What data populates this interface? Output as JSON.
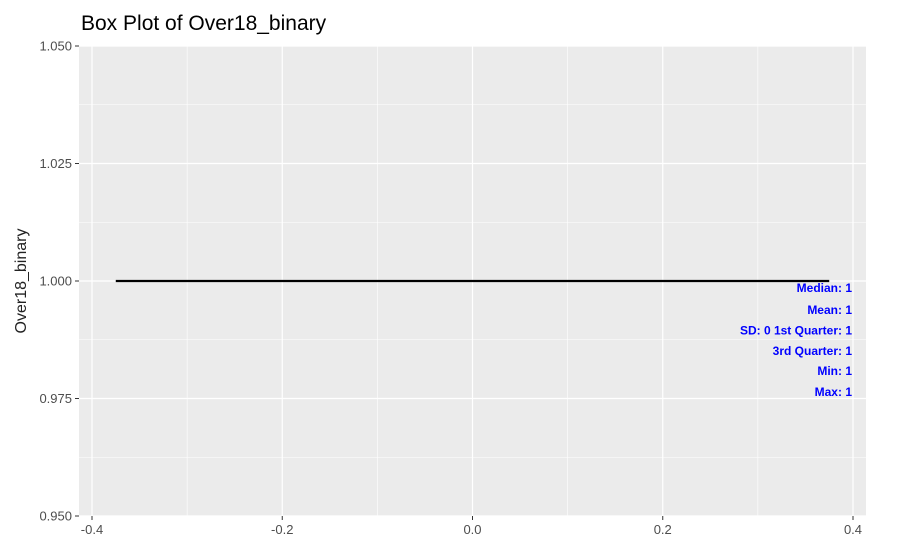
{
  "chart_data": {
    "type": "box",
    "title": "Box Plot of Over18_binary",
    "ylabel": "Over18_binary",
    "xlabel": "",
    "xlim": [
      -0.4,
      0.4
    ],
    "ylim": [
      0.95,
      1.05
    ],
    "x_ticks": [
      -0.4,
      -0.2,
      0.0,
      0.2,
      0.4
    ],
    "x_tick_labels": [
      "-0.4",
      "-0.2",
      "0.0",
      "0.2",
      "0.4"
    ],
    "y_ticks": [
      0.95,
      0.975,
      1.0,
      1.025,
      1.05
    ],
    "y_tick_labels": [
      "0.950",
      "0.975",
      "1.000",
      "1.025",
      "1.050"
    ],
    "grid": true,
    "box": {
      "xmin": -0.375,
      "xmax": 0.375,
      "min": 1,
      "q1": 1,
      "median": 1,
      "q3": 1,
      "max": 1
    },
    "annotations": [
      {
        "text": "Median:  1",
        "y": 0.9985
      },
      {
        "text": "Mean:  1",
        "y": 0.9938
      },
      {
        "text": "SD:  0 1st Quarter:  1",
        "y": 0.9895
      },
      {
        "text": "3rd Quarter:  1",
        "y": 0.9851
      },
      {
        "text": "Min:  1",
        "y": 0.9808
      },
      {
        "text": "Max:  1",
        "y": 0.9764
      }
    ],
    "colors": {
      "panel": "#ebebeb",
      "grid": "#ffffff",
      "line": "#000000",
      "annotation": "#0000ff"
    }
  }
}
